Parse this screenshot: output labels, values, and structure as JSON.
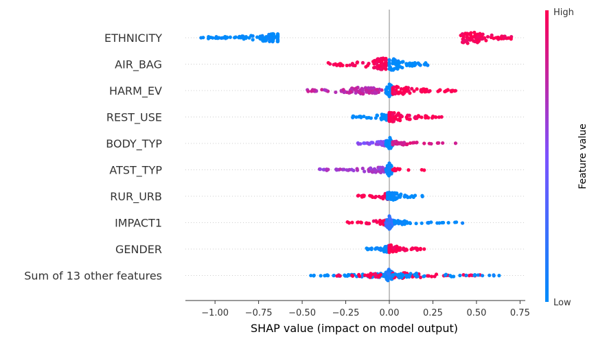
{
  "chart_data": {
    "type": "scatter",
    "subtype": "shap-beeswarm",
    "xlabel": "SHAP value (impact on model output)",
    "xlim": [
      -1.17,
      0.78
    ],
    "xticks": [
      -1.0,
      -0.75,
      -0.5,
      -0.25,
      0.0,
      0.25,
      0.5,
      0.75
    ],
    "xtick_labels": [
      "−1.00",
      "−0.75",
      "−0.50",
      "−0.25",
      "0.00",
      "0.25",
      "0.50",
      "0.75"
    ],
    "zero_line": 0.0,
    "grid": false,
    "row_guides": "dotted",
    "colorbar": {
      "label": "Feature value",
      "high_label": "High",
      "low_label": "Low",
      "low_color": "#008bfb",
      "mid_color": "#7c52ff",
      "high_color": "#ff0052"
    },
    "features": [
      {
        "name": "ETHNICITY",
        "spread": 8,
        "clusters": [
          {
            "min": -1.08,
            "max": -0.64,
            "center": -0.66,
            "v": 0.0,
            "n": 110,
            "spread": 6
          },
          {
            "min": 0.41,
            "max": 0.7,
            "center": 0.47,
            "v": 1.0,
            "n": 80,
            "spread": 9
          }
        ]
      },
      {
        "name": "AIR_BAG",
        "clusters": [
          {
            "min": -0.35,
            "max": -0.02,
            "center": -0.03,
            "v": 1.0,
            "n": 90,
            "spread": 9
          },
          {
            "min": 0.0,
            "max": 0.22,
            "center": 0.02,
            "v": 0.0,
            "n": 70,
            "spread": 9
          }
        ]
      },
      {
        "name": "HARM_EV",
        "clusters": [
          {
            "min": -0.47,
            "max": -0.02,
            "center": -0.15,
            "v": 0.75,
            "n": 90,
            "spread": 5
          },
          {
            "min": -0.02,
            "max": 0.04,
            "center": 0.0,
            "v": 0.0,
            "n": 40,
            "spread": 10
          },
          {
            "min": 0.02,
            "max": 0.38,
            "center": 0.05,
            "v": 1.0,
            "n": 70,
            "spread": 6
          }
        ]
      },
      {
        "name": "REST_USE",
        "clusters": [
          {
            "min": -0.21,
            "max": 0.0,
            "center": -0.01,
            "v": 0.0,
            "n": 60,
            "spread": 5
          },
          {
            "min": 0.0,
            "max": 0.3,
            "center": 0.01,
            "v": 1.0,
            "n": 80,
            "spread": 7
          }
        ]
      },
      {
        "name": "BODY_TYP",
        "clusters": [
          {
            "min": -0.18,
            "max": -0.01,
            "center": -0.02,
            "v": 0.55,
            "n": 50,
            "spread": 4
          },
          {
            "min": -0.02,
            "max": 0.02,
            "center": 0.0,
            "v": 0.0,
            "n": 40,
            "spread": 10
          },
          {
            "min": 0.02,
            "max": 0.38,
            "center": 0.04,
            "v": 0.85,
            "n": 40,
            "spread": 3
          }
        ]
      },
      {
        "name": "ATST_TYP",
        "clusters": [
          {
            "min": -0.4,
            "max": -0.01,
            "center": -0.05,
            "v": 0.65,
            "n": 80,
            "spread": 4
          },
          {
            "min": -0.02,
            "max": 0.02,
            "center": 0.0,
            "v": 0.0,
            "n": 40,
            "spread": 10
          },
          {
            "min": 0.02,
            "max": 0.2,
            "center": 0.03,
            "v": 1.0,
            "n": 12,
            "spread": 2
          }
        ]
      },
      {
        "name": "RUR_URB",
        "clusters": [
          {
            "min": -0.18,
            "max": -0.01,
            "center": -0.01,
            "v": 1.0,
            "n": 50,
            "spread": 5
          },
          {
            "min": -0.01,
            "max": 0.19,
            "center": 0.01,
            "v": 0.0,
            "n": 60,
            "spread": 6
          }
        ]
      },
      {
        "name": "IMPACT1",
        "clusters": [
          {
            "min": -0.24,
            "max": -0.01,
            "center": -0.02,
            "v": 1.0,
            "n": 50,
            "spread": 4
          },
          {
            "min": -0.02,
            "max": 0.03,
            "center": 0.0,
            "v": 0.2,
            "n": 40,
            "spread": 10
          },
          {
            "min": 0.03,
            "max": 0.42,
            "center": 0.05,
            "v": 0.0,
            "n": 40,
            "spread": 3
          }
        ]
      },
      {
        "name": "GENDER",
        "clusters": [
          {
            "min": -0.13,
            "max": 0.0,
            "center": -0.01,
            "v": 0.0,
            "n": 50,
            "spread": 5
          },
          {
            "min": 0.0,
            "max": 0.2,
            "center": 0.01,
            "v": 1.0,
            "n": 60,
            "spread": 6
          }
        ]
      },
      {
        "name": "Sum of 13 other features",
        "clusters": [
          {
            "min": -0.45,
            "max": -0.02,
            "center": -0.05,
            "v": 0.0,
            "n": 70,
            "spread": 3
          },
          {
            "min": -0.3,
            "max": -0.05,
            "center": -0.1,
            "v": 1.0,
            "n": 25,
            "spread": 3
          },
          {
            "min": -0.02,
            "max": 0.03,
            "center": 0.0,
            "v": 0.1,
            "n": 50,
            "spread": 10
          },
          {
            "min": 0.02,
            "max": 0.52,
            "center": 0.08,
            "v": 1.0,
            "n": 40,
            "spread": 4
          },
          {
            "min": 0.02,
            "max": 0.63,
            "center": 0.1,
            "v": 0.0,
            "n": 40,
            "spread": 4
          }
        ]
      }
    ]
  }
}
